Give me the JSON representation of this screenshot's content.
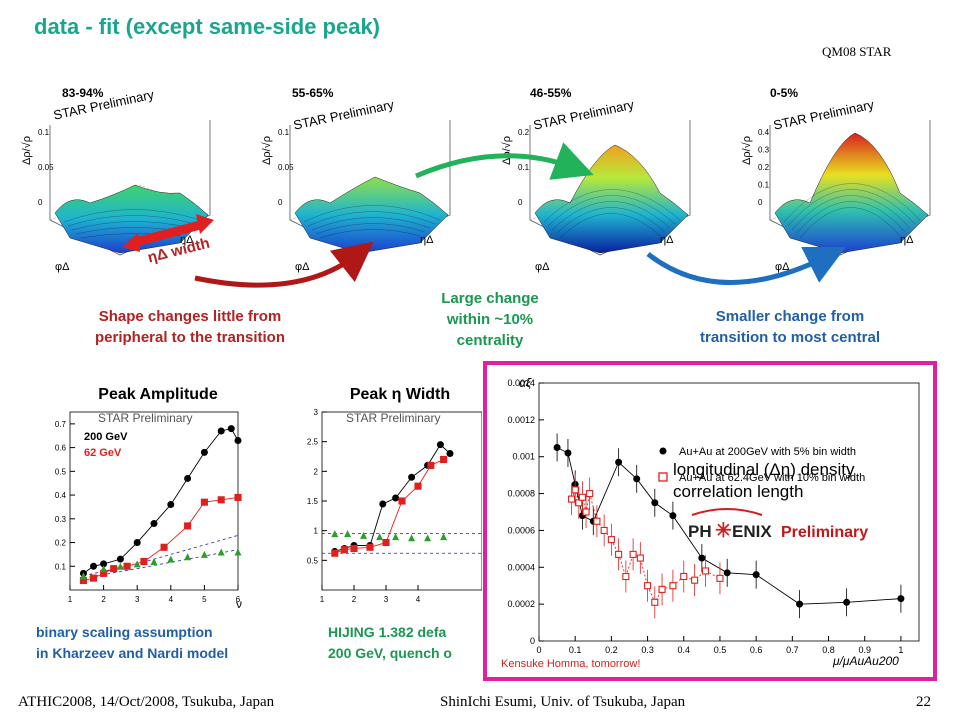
{
  "slide": {
    "title": "data - fit (except same-side peak)",
    "tag": "QM08 STAR",
    "page_number": "22"
  },
  "surface_plots": [
    {
      "centrality": "83-94%",
      "label": "STAR Preliminary",
      "ylabel": "Δρ/√ρ",
      "ticks": [
        "0.1",
        "0.05",
        "0"
      ]
    },
    {
      "centrality": "55-65%",
      "label": "STAR Preliminary",
      "ylabel": "Δρ/√ρ",
      "ticks": [
        "0.1",
        "0.05",
        "0"
      ]
    },
    {
      "centrality": "46-55%",
      "label": "STAR Preliminary",
      "ylabel": "Δρ/√ρ",
      "ticks": [
        "0.2",
        "0.1",
        "0"
      ]
    },
    {
      "centrality": "0-5%",
      "label": "STAR Preliminary",
      "ylabel": "Δρ/√ρ",
      "ticks": [
        "0.4",
        "0.3",
        "0.2",
        "0.1",
        "0"
      ]
    }
  ],
  "axis_labels": {
    "phi": "φΔ",
    "eta": "ηΔ"
  },
  "annotations": {
    "width_label": "ηΔ width",
    "shape_note": [
      "Shape changes little from",
      "peripheral to the transition"
    ],
    "large_change": [
      "Large change",
      "within ~10%",
      "centrality"
    ],
    "smaller_change": [
      "Smaller change from",
      "transition to most central"
    ]
  },
  "bottom_panels": {
    "amplitude": {
      "title": "Peak Amplitude",
      "prelim": "STAR Preliminary",
      "legend_200": "200 GeV",
      "legend_62": "62 GeV",
      "caption": [
        "binary scaling assumption",
        "in Kharzeev and Nardi model"
      ],
      "xlabel": "ν",
      "colors": {
        "200": "#000000",
        "62": "#e0201c",
        "green": "#2aa02a",
        "dashed": "#2020c0"
      }
    },
    "width": {
      "title": "Peak η Width",
      "prelim": "STAR Preliminary",
      "caption": [
        "HIJING 1.382 defa",
        "200 GeV, quench o"
      ]
    }
  },
  "chart_data": [
    {
      "type": "scatter",
      "title": "Peak Amplitude",
      "xlabel": "ν",
      "ylabel": "",
      "xlim": [
        1,
        6
      ],
      "ylim": [
        0,
        0.75
      ],
      "series": [
        {
          "name": "200 GeV",
          "x": [
            1.4,
            1.7,
            2.0,
            2.5,
            3.0,
            3.5,
            4.0,
            4.5,
            5.0,
            5.5,
            5.8,
            6.0
          ],
          "y": [
            0.07,
            0.1,
            0.11,
            0.13,
            0.2,
            0.28,
            0.36,
            0.47,
            0.58,
            0.67,
            0.68,
            0.63
          ]
        },
        {
          "name": "62 GeV",
          "x": [
            1.4,
            1.7,
            2.0,
            2.3,
            2.7,
            3.2,
            3.8,
            4.5,
            5.0,
            5.5,
            6.0
          ],
          "y": [
            0.04,
            0.05,
            0.07,
            0.09,
            0.1,
            0.12,
            0.18,
            0.27,
            0.37,
            0.38,
            0.39
          ]
        },
        {
          "x": [
            1.4,
            2.0,
            2.5,
            3.0,
            3.5,
            4.0,
            4.5,
            5.0,
            5.5,
            6.0
          ],
          "y": [
            0.06,
            0.09,
            0.1,
            0.11,
            0.12,
            0.13,
            0.14,
            0.15,
            0.16,
            0.16
          ]
        }
      ]
    },
    {
      "type": "scatter",
      "title": "Peak η Width",
      "xlim": [
        1,
        6
      ],
      "ylim": [
        0,
        3
      ],
      "series": [
        {
          "name": "200 GeV",
          "x": [
            1.4,
            1.7,
            2.0,
            2.5,
            2.9,
            3.3,
            3.8,
            4.3,
            4.7,
            5.0
          ],
          "y": [
            0.65,
            0.7,
            0.75,
            0.75,
            1.45,
            1.55,
            1.9,
            2.1,
            2.45,
            2.3
          ]
        },
        {
          "name": "62 GeV",
          "x": [
            1.4,
            1.7,
            2.0,
            2.5,
            3.0,
            3.5,
            4.0,
            4.4,
            4.8
          ],
          "y": [
            0.62,
            0.68,
            0.7,
            0.72,
            0.8,
            1.5,
            1.75,
            2.1,
            2.2
          ]
        },
        {
          "x": [
            1.4,
            1.8,
            2.3,
            2.8,
            3.3,
            3.8,
            4.3,
            4.8
          ],
          "y": [
            0.95,
            0.95,
            0.92,
            0.9,
            0.9,
            0.88,
            0.88,
            0.9
          ]
        }
      ]
    },
    {
      "type": "scatter",
      "title": "",
      "xlabel": "μ/μAuAu200",
      "ylabel": "αξ",
      "xlim": [
        0,
        1.05
      ],
      "ylim": [
        0,
        0.0014
      ],
      "yticks": [
        "0",
        "0.0002",
        "0.0004",
        "0.0006",
        "0.0008",
        "0.001",
        "0.0012",
        "0.0014"
      ],
      "xticks": [
        "0",
        "0.1",
        "0.2",
        "0.3",
        "0.4",
        "0.5",
        "0.6",
        "0.7",
        "0.8",
        "0.9",
        "1"
      ],
      "series": [
        {
          "name": "Au+Au at 200GeV with 5% bin width",
          "x": [
            0.05,
            0.08,
            0.1,
            0.12,
            0.15,
            0.22,
            0.27,
            0.32,
            0.37,
            0.45,
            0.52,
            0.6,
            0.72,
            0.85,
            1.0
          ],
          "y": [
            0.00105,
            0.00102,
            0.00085,
            0.00068,
            0.00065,
            0.00097,
            0.00088,
            0.00075,
            0.00068,
            0.00045,
            0.00037,
            0.00036,
            0.0002,
            0.00021,
            0.00023
          ]
        },
        {
          "name": "Au+Au at 62.4GeV with 10% bin width",
          "x": [
            0.09,
            0.1,
            0.11,
            0.12,
            0.13,
            0.14,
            0.16,
            0.18,
            0.2,
            0.22,
            0.24,
            0.26,
            0.28,
            0.3,
            0.32,
            0.34,
            0.37,
            0.4,
            0.43,
            0.46,
            0.5
          ],
          "y": [
            0.00077,
            0.00082,
            0.00075,
            0.00078,
            0.0007,
            0.0008,
            0.00065,
            0.0006,
            0.00055,
            0.00047,
            0.00035,
            0.00047,
            0.00045,
            0.0003,
            0.00021,
            0.00028,
            0.0003,
            0.00035,
            0.00033,
            0.00038,
            0.00034
          ]
        }
      ]
    }
  ],
  "inset": {
    "text_line1": "longitudinal (Δη) density",
    "text_line2": "correlation length",
    "logo_left": "PH",
    "logo_right": "ENIX",
    "logo_prelim": "Preliminary",
    "credit": "Kensuke Homma, tomorrow!",
    "legend": [
      "Au+Au at 200GeV with 5% bin width",
      "Au+Au at 62.4GeV with 10% bin width"
    ],
    "ylabel": "αξ",
    "xlabel": "μ/μAuAu200"
  },
  "footer": {
    "left": "ATHIC2008, 14/Oct/2008, Tsukuba, Japan",
    "center": "ShinIchi Esumi, Univ. of Tsukuba, Japan",
    "right": "22"
  }
}
